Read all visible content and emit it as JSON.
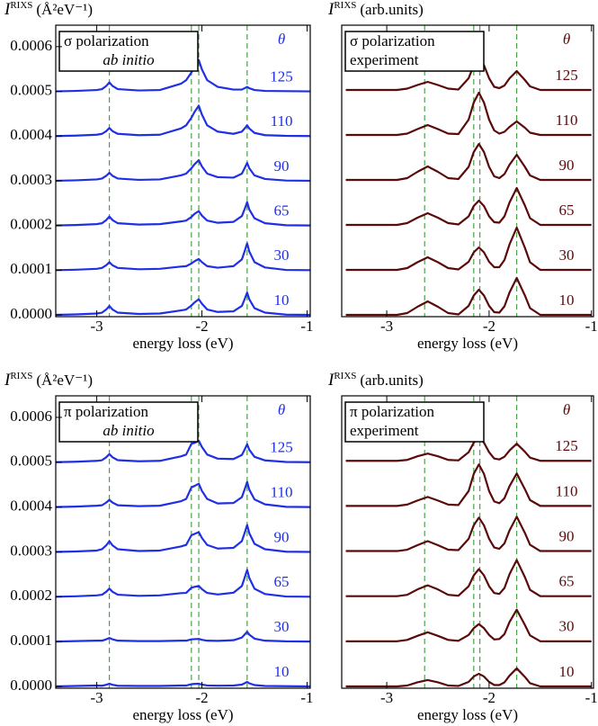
{
  "chart_data": [
    {
      "type": "line",
      "ylabel": {
        "symbol": "I",
        "sup": "RIXS",
        "unit": "(Å²eV⁻¹)"
      },
      "box": [
        "σ polarization",
        "ab initio"
      ],
      "box_italic": [
        false,
        true
      ],
      "theta_label": "θ",
      "xlabel": "energy loss (eV)",
      "color": "#1f2fe6",
      "vline_color": "#3a9a3a",
      "x": [
        -3.39,
        -3.2,
        -3.0,
        -2.95,
        -2.91,
        -2.88,
        -2.85,
        -2.8,
        -2.6,
        -2.4,
        -2.2,
        -2.15,
        -2.1,
        -2.07,
        -2.03,
        -2.0,
        -1.95,
        -1.85,
        -1.7,
        -1.62,
        -1.59,
        -1.57,
        -1.55,
        -1.5,
        -1.4,
        -1.2,
        -0.97
      ],
      "series": [
        {
          "name": "10",
          "values": [
            0.0,
            1e-06,
            3e-06,
            5e-06,
            1.2e-05,
            2e-05,
            1.2e-05,
            5e-06,
            2e-06,
            3e-06,
            1e-05,
            1.2e-05,
            2.1e-05,
            2.8e-05,
            3.5e-05,
            2.5e-05,
            1.2e-05,
            6.5e-06,
            8e-06,
            2e-05,
            3.75e-05,
            5e-05,
            3.5e-05,
            1.5e-05,
            5e-06,
            5e-07,
            0.0
          ]
        },
        {
          "name": "30",
          "values": [
            0.0001,
            0.000101,
            0.000103,
            0.000105,
            0.000111,
            0.000118,
            0.000111,
            0.000105,
            0.000102,
            0.000103,
            0.000108,
            0.000109,
            0.000115,
            0.00012,
            0.000125,
            0.000118,
            0.000109,
            0.0001055,
            0.000109,
            0.000124,
            0.000145,
            0.00016,
            0.000142,
            0.000118,
            0.000106,
            0.0001005,
            0.0001
          ]
        },
        {
          "name": "65",
          "values": [
            0.0002,
            0.000201,
            0.000203,
            0.000205,
            0.000212,
            0.00022,
            0.000212,
            0.000205,
            0.000202,
            0.000203,
            0.000209,
            0.000211,
            0.000219,
            0.000226,
            0.000232,
            0.000222,
            0.000211,
            0.000206,
            0.000208,
            0.000221,
            0.000239,
            0.000252,
            0.000236,
            0.000216,
            0.000205,
            0.0002005,
            0.0002
          ]
        },
        {
          "name": "90",
          "values": [
            0.0003,
            0.000301,
            0.000303,
            0.000305,
            0.000311,
            0.000318,
            0.000311,
            0.000305,
            0.000302,
            0.000303,
            0.000312,
            0.000316,
            0.000328,
            0.000337,
            0.000346,
            0.000332,
            0.000316,
            0.000308,
            0.000307,
            0.000316,
            0.00033,
            0.00034,
            0.000328,
            0.000312,
            0.000304,
            0.0003005,
            0.0003
          ]
        },
        {
          "name": "110",
          "values": [
            0.0004,
            0.000401,
            0.000403,
            0.000405,
            0.000411,
            0.000418,
            0.000411,
            0.000405,
            0.000402,
            0.000403,
            0.000417,
            0.000424,
            0.000441,
            0.000454,
            0.000468,
            0.000448,
            0.000424,
            0.00041,
            0.000405,
            0.00041,
            0.000418,
            0.000424,
            0.000417,
            0.000407,
            0.000402,
            0.0004005,
            0.0004
          ]
        },
        {
          "name": "125",
          "values": [
            0.0005,
            0.000501,
            0.000503,
            0.000505,
            0.000512,
            0.00052,
            0.000512,
            0.000505,
            0.000502,
            0.000503,
            0.000517,
            0.000525,
            0.000542,
            0.000556,
            0.00057,
            0.000549,
            0.000525,
            0.00051,
            0.000504,
            0.000504,
            0.0005075,
            0.00051,
            0.000507,
            0.000503,
            0.000501,
            0.0005005,
            0.0005
          ]
        }
      ],
      "vlines": [
        -2.88,
        -2.1,
        -2.03,
        -1.57
      ],
      "xlim": [
        -3.39,
        -0.97
      ],
      "xticks": [
        -3,
        -2,
        -1
      ],
      "ylim": [
        -4e-06,
        0.000648
      ],
      "yticks": [
        {
          "value": 0,
          "label": "0.0000"
        },
        0.0001,
        0.0002,
        0.0003,
        0.0004,
        0.0005,
        0.0006
      ]
    },
    {
      "type": "line",
      "ylabel": {
        "symbol": "I",
        "sup": "RIXS",
        "unit": "(arb.units)"
      },
      "box": [
        "σ polarization",
        "experiment"
      ],
      "box_italic": [
        false,
        false
      ],
      "theta_label": "θ",
      "xlabel": "energy loss (eV)",
      "color": "#5a0a0a",
      "vline_color": "#3a9a3a",
      "x": [
        -3.4,
        -3.2,
        -3.0,
        -2.9,
        -2.8,
        -2.7,
        -2.6,
        -2.5,
        -2.4,
        -2.3,
        -2.2,
        -2.15,
        -2.1,
        -2.05,
        -2.0,
        -1.95,
        -1.9,
        -1.85,
        -1.8,
        -1.73,
        -1.65,
        -1.6,
        -1.5,
        -1.4,
        -1.2,
        -1.0
      ],
      "series": [
        {
          "name": "10",
          "values": [
            0,
            0,
            0,
            0,
            0.04,
            0.18,
            0.3,
            0.18,
            0.04,
            0.01,
            0.2,
            0.43,
            0.56,
            0.43,
            0.2,
            0.06,
            0.05,
            0.19,
            0.5,
            0.82,
            0.43,
            0.15,
            0,
            0,
            0,
            0
          ]
        },
        {
          "name": "30",
          "values": [
            1,
            1,
            1,
            1,
            1.04,
            1.17,
            1.28,
            1.17,
            1.04,
            1.01,
            1.18,
            1.39,
            1.5,
            1.39,
            1.18,
            1.06,
            1.06,
            1.22,
            1.57,
            1.94,
            1.49,
            1.17,
            1,
            1,
            1,
            1
          ]
        },
        {
          "name": "65",
          "values": [
            2,
            2,
            2,
            2,
            2.04,
            2.16,
            2.26,
            2.16,
            2.04,
            2.01,
            2.19,
            2.42,
            2.54,
            2.42,
            2.19,
            2.06,
            2.05,
            2.19,
            2.5,
            2.82,
            2.43,
            2.15,
            2,
            2,
            2,
            2
          ]
        },
        {
          "name": "90",
          "values": [
            3,
            3,
            3,
            3,
            3.04,
            3.18,
            3.3,
            3.18,
            3.04,
            3.02,
            3.29,
            3.62,
            3.8,
            3.62,
            3.29,
            3.08,
            3.04,
            3.13,
            3.34,
            3.56,
            3.29,
            3.1,
            3,
            3,
            3,
            3
          ]
        },
        {
          "name": "110",
          "values": [
            4,
            4,
            4,
            4,
            4.03,
            4.13,
            4.22,
            4.13,
            4.03,
            4.02,
            4.34,
            4.72,
            4.94,
            4.72,
            4.34,
            4.1,
            4.03,
            4.07,
            4.18,
            4.3,
            4.16,
            4.05,
            4,
            4,
            4,
            4
          ]
        },
        {
          "name": "125",
          "values": [
            5,
            5,
            5,
            5,
            5.03,
            5.11,
            5.18,
            5.11,
            5.03,
            5.01,
            5.26,
            5.55,
            5.72,
            5.55,
            5.26,
            5.07,
            5.04,
            5.1,
            5.26,
            5.42,
            5.22,
            5.08,
            5,
            5,
            5,
            5
          ]
        }
      ],
      "vlines": [
        -2.63,
        -2.15,
        -2.09,
        -1.73
      ],
      "xlim": [
        -3.44,
        -0.98
      ],
      "xticks": [
        -3,
        -2,
        -1
      ],
      "ylim": [
        -0.04,
        6.44
      ]
    },
    {
      "type": "line",
      "ylabel": {
        "symbol": "I",
        "sup": "RIXS",
        "unit": "(Å²eV⁻¹)"
      },
      "box": [
        "π polarization",
        "ab initio"
      ],
      "box_italic": [
        false,
        true
      ],
      "theta_label": "θ",
      "xlabel": "energy loss (eV)",
      "color": "#1f2fe6",
      "vline_color": "#3a9a3a",
      "x": [
        -3.39,
        -3.2,
        -3.0,
        -2.95,
        -2.91,
        -2.88,
        -2.85,
        -2.8,
        -2.6,
        -2.4,
        -2.2,
        -2.15,
        -2.1,
        -2.07,
        -2.03,
        -2.0,
        -1.95,
        -1.85,
        -1.7,
        -1.62,
        -1.59,
        -1.57,
        -1.55,
        -1.5,
        -1.4,
        -1.2,
        -0.97
      ],
      "series": [
        {
          "name": "10",
          "values": [
            0.0,
            1e-06,
            2e-06,
            1.5e-06,
            3.6e-06,
            6e-06,
            3.6e-06,
            1.5e-06,
            1e-06,
            1e-06,
            2e-06,
            2e-06,
            5e-06,
            5.5e-06,
            6e-06,
            4.2e-06,
            2.1e-06,
            1.6e-06,
            2e-06,
            4e-06,
            7.5e-06,
            1e-05,
            7e-06,
            3e-06,
            1e-06,
            5e-07,
            0.0
          ]
        },
        {
          "name": "30",
          "values": [
            0.0001,
            0.000101,
            0.000102,
            0.000102,
            0.000105,
            0.000108,
            0.000105,
            0.000102,
            0.000101,
            0.000101,
            0.000102,
            0.000102,
            0.000105,
            0.0001055,
            0.000106,
            0.000104,
            0.000102,
            0.0001015,
            0.000103,
            0.000109,
            0.0001165,
            0.000122,
            0.0001155,
            0.0001065,
            0.000102,
            0.0001005,
            0.0001
          ]
        },
        {
          "name": "65",
          "values": [
            0.0002,
            0.000201,
            0.000203,
            0.0002045,
            0.000211,
            0.000218,
            0.000211,
            0.0002045,
            0.000202,
            0.000203,
            0.000208,
            0.0002085,
            0.00022,
            0.000222,
            0.000224,
            0.000217,
            0.0002085,
            0.000205,
            0.000209,
            0.000224,
            0.000245,
            0.00026,
            0.000242,
            0.000218,
            0.000206,
            0.0002005,
            0.0002
          ]
        },
        {
          "name": "90",
          "values": [
            0.0003,
            0.000301,
            0.000303,
            0.000306,
            0.0003145,
            0.000324,
            0.0003145,
            0.000306,
            0.000302,
            0.000303,
            0.000312,
            0.0003155,
            0.000337,
            0.00034,
            0.000344,
            0.000331,
            0.0003155,
            0.0003075,
            0.000309,
            0.000324,
            0.000345,
            0.00036,
            0.000342,
            0.000318,
            0.000306,
            0.0003005,
            0.0003
          ]
        },
        {
          "name": "110",
          "values": [
            0.0004,
            0.000401,
            0.000403,
            0.000404,
            0.00041,
            0.000416,
            0.00041,
            0.000404,
            0.000402,
            0.000403,
            0.000413,
            0.000418,
            0.000444,
            0.000447,
            0.000452,
            0.000436,
            0.000418,
            0.000408,
            0.000409,
            0.000422,
            0.000442,
            0.000456,
            0.000439,
            0.000417,
            0.000406,
            0.0004005,
            0.0004
          ]
        },
        {
          "name": "125",
          "values": [
            0.0005,
            0.000501,
            0.000503,
            0.0005045,
            0.000511,
            0.000518,
            0.000511,
            0.0005045,
            0.000502,
            0.000503,
            0.000513,
            0.000517,
            0.000541,
            0.000543,
            0.000548,
            0.000534,
            0.000517,
            0.000508,
            0.000507,
            0.000516,
            0.00053,
            0.00054,
            0.000528,
            0.000512,
            0.000504,
            0.0005005,
            0.0005
          ]
        }
      ],
      "vlines": [
        -2.88,
        -2.1,
        -2.03,
        -1.57
      ],
      "xlim": [
        -3.39,
        -0.97
      ],
      "xticks": [
        -3,
        -2,
        -1
      ],
      "ylim": [
        -4e-06,
        0.000648
      ],
      "yticks": [
        {
          "value": 0,
          "label": "0.0000"
        },
        0.0001,
        0.0002,
        0.0003,
        0.0004,
        0.0005,
        0.0006
      ]
    },
    {
      "type": "line",
      "ylabel": {
        "symbol": "I",
        "sup": "RIXS",
        "unit": "(arb.units)"
      },
      "box": [
        "π polarization",
        "experiment"
      ],
      "box_italic": [
        false,
        false
      ],
      "theta_label": "θ",
      "xlabel": "energy loss (eV)",
      "color": "#5a0a0a",
      "vline_color": "#3a9a3a",
      "x": [
        -3.4,
        -3.2,
        -3.0,
        -2.9,
        -2.8,
        -2.7,
        -2.6,
        -2.5,
        -2.4,
        -2.3,
        -2.2,
        -2.15,
        -2.1,
        -2.05,
        -2.0,
        -1.95,
        -1.9,
        -1.85,
        -1.8,
        -1.73,
        -1.65,
        -1.6,
        -1.5,
        -1.4,
        -1.2,
        -1.0
      ],
      "series": [
        {
          "name": "10",
          "values": [
            0,
            0,
            0,
            0,
            0.02,
            0.09,
            0.14,
            0.09,
            0.02,
            0.01,
            0.1,
            0.22,
            0.28,
            0.22,
            0.1,
            0.03,
            0.03,
            0.09,
            0.24,
            0.4,
            0.21,
            0.07,
            0,
            0,
            0,
            0
          ]
        },
        {
          "name": "30",
          "values": [
            1,
            1,
            1,
            1,
            1.03,
            1.12,
            1.2,
            1.12,
            1.03,
            1.01,
            1.14,
            1.29,
            1.38,
            1.29,
            1.14,
            1.04,
            1.05,
            1.16,
            1.43,
            1.7,
            1.36,
            1.13,
            1,
            1,
            1,
            1
          ]
        },
        {
          "name": "65",
          "values": [
            2,
            2,
            2,
            2,
            2.03,
            2.15,
            2.24,
            2.15,
            2.03,
            2.01,
            2.22,
            2.46,
            2.6,
            2.46,
            2.22,
            2.07,
            2.05,
            2.18,
            2.49,
            2.8,
            2.42,
            2.14,
            2,
            2,
            2,
            2
          ]
        },
        {
          "name": "90",
          "values": [
            3,
            3,
            3,
            3,
            3.03,
            3.13,
            3.22,
            3.13,
            3.03,
            3.02,
            3.27,
            3.57,
            3.74,
            3.57,
            3.27,
            3.08,
            3.05,
            3.17,
            3.46,
            3.76,
            3.4,
            3.14,
            3,
            3,
            3,
            3
          ]
        },
        {
          "name": "110",
          "values": [
            4,
            4,
            4,
            4,
            4.03,
            4.12,
            4.2,
            4.12,
            4.03,
            4.02,
            4.33,
            4.71,
            4.92,
            4.71,
            4.33,
            4.1,
            4.06,
            4.17,
            4.44,
            4.72,
            4.37,
            4.13,
            4,
            4,
            4,
            4
          ]
        },
        {
          "name": "125",
          "values": [
            5,
            5,
            5,
            5,
            5.02,
            5.1,
            5.16,
            5.1,
            5.02,
            5.01,
            5.19,
            5.4,
            5.52,
            5.4,
            5.19,
            5.05,
            5.03,
            5.09,
            5.23,
            5.38,
            5.2,
            5.07,
            5,
            5,
            5,
            5
          ]
        }
      ],
      "vlines": [
        -2.63,
        -2.15,
        -2.09,
        -1.73
      ],
      "xlim": [
        -3.44,
        -0.98
      ],
      "xticks": [
        -3,
        -2,
        -1
      ],
      "ylim": [
        -0.04,
        6.44
      ]
    }
  ]
}
